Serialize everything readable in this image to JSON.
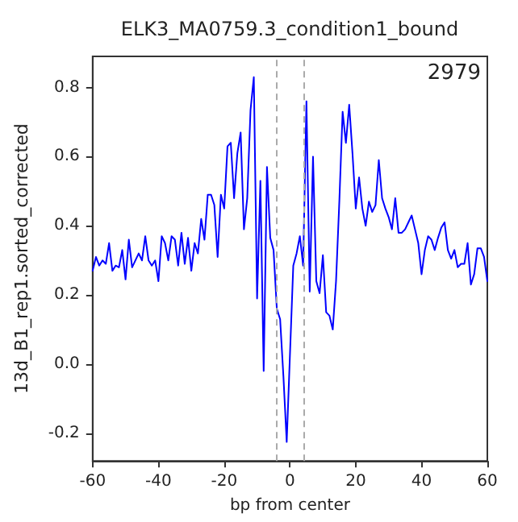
{
  "chart_data": {
    "type": "line",
    "title": "ELK3_MA0759.3_condition1_bound",
    "xlabel": "bp from center",
    "ylabel": "13d_B1_rep1.sorted_corrected",
    "annotations": [
      "2979"
    ],
    "x": [
      -60,
      -59,
      -58,
      -57,
      -56,
      -55,
      -54,
      -53,
      -52,
      -51,
      -50,
      -49,
      -48,
      -46,
      -45,
      -44,
      -43,
      -42,
      -41,
      -40,
      -39,
      -38,
      -37,
      -36,
      -35,
      -34,
      -33,
      -32,
      -31,
      -30,
      -29,
      -28,
      -27,
      -26,
      -25,
      -24,
      -23,
      -22,
      -21,
      -20,
      -19,
      -18,
      -17,
      -16,
      -15,
      -14,
      -13,
      -12,
      -11,
      -10,
      -9,
      -8,
      -7,
      -6,
      -5,
      -4,
      -3,
      -2,
      -1,
      1,
      2,
      3,
      4,
      5,
      6,
      7,
      8,
      9,
      10,
      11,
      12,
      13,
      14,
      15,
      16,
      17,
      18,
      19,
      20,
      21,
      22,
      23,
      24,
      25,
      26,
      27,
      28,
      29,
      30,
      31,
      32,
      33,
      34,
      35,
      36,
      37,
      38,
      39,
      40,
      41,
      42,
      43,
      44,
      45,
      46,
      47,
      48,
      49,
      50,
      51,
      52,
      53,
      54,
      55,
      56,
      57,
      58,
      59,
      60
    ],
    "series": [
      {
        "color": "#0000ff",
        "values": [
          0.27,
          0.31,
          0.285,
          0.3,
          0.29,
          0.35,
          0.27,
          0.285,
          0.28,
          0.33,
          0.245,
          0.36,
          0.28,
          0.32,
          0.3,
          0.37,
          0.3,
          0.285,
          0.3,
          0.24,
          0.37,
          0.35,
          0.3,
          0.37,
          0.36,
          0.285,
          0.38,
          0.29,
          0.365,
          0.27,
          0.35,
          0.32,
          0.42,
          0.36,
          0.49,
          0.49,
          0.46,
          0.31,
          0.49,
          0.45,
          0.63,
          0.64,
          0.48,
          0.61,
          0.67,
          0.39,
          0.48,
          0.735,
          0.83,
          0.19,
          0.53,
          -0.02,
          0.57,
          0.365,
          0.33,
          0.16,
          0.13,
          -0.035,
          -0.225,
          0.285,
          0.32,
          0.37,
          0.285,
          0.76,
          0.21,
          0.6,
          0.24,
          0.205,
          0.315,
          0.15,
          0.14,
          0.1,
          0.24,
          0.47,
          0.73,
          0.64,
          0.75,
          0.61,
          0.45,
          0.54,
          0.45,
          0.4,
          0.47,
          0.44,
          0.46,
          0.59,
          0.48,
          0.45,
          0.425,
          0.39,
          0.48,
          0.38,
          0.38,
          0.39,
          0.41,
          0.43,
          0.39,
          0.35,
          0.26,
          0.33,
          0.37,
          0.36,
          0.33,
          0.365,
          0.395,
          0.41,
          0.33,
          0.305,
          0.33,
          0.28,
          0.29,
          0.29,
          0.35,
          0.23,
          0.26,
          0.335,
          0.335,
          0.31,
          0.24
        ]
      }
    ],
    "xlim": [
      -60,
      60
    ],
    "xticks": [
      -60,
      -40,
      -20,
      0,
      20,
      40,
      60
    ],
    "ylim": [
      -0.28,
      0.89
    ],
    "yticks": [
      -0.2,
      {
        "value": 0,
        "label": "0.0"
      },
      0.2,
      0.4,
      0.6,
      0.8
    ],
    "ref_lines": [
      {
        "axis": "x",
        "value": -4,
        "color": "#aaaaaa",
        "line_style": "dashed"
      },
      {
        "axis": "x",
        "value": 4,
        "color": "#aaaaaa",
        "line_style": "dashed"
      }
    ],
    "grid": false,
    "marker": "none",
    "line_style": "solid"
  }
}
